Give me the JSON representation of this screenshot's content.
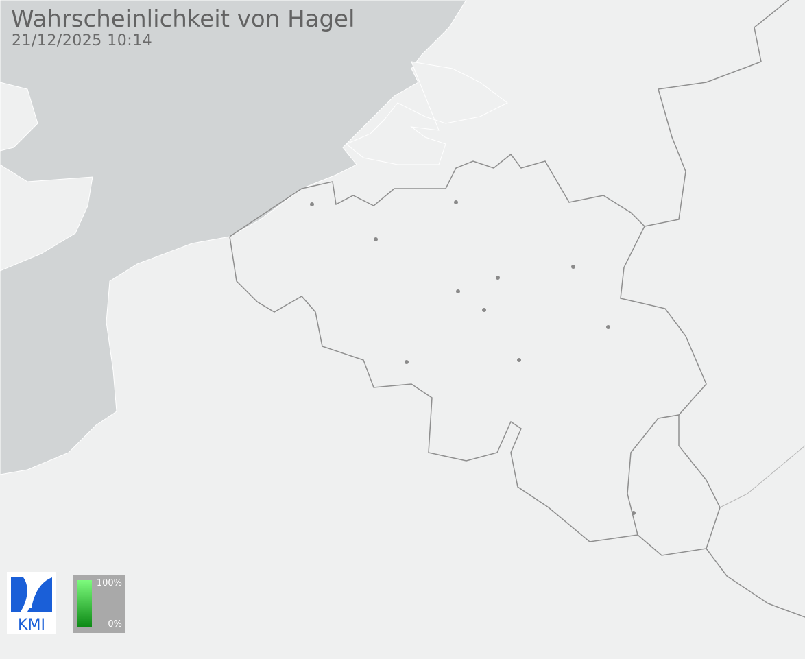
{
  "header": {
    "title": "Wahrscheinlichkeit von Hagel",
    "timestamp": "21/12/2025 10:14"
  },
  "legend": {
    "max_label": "100%",
    "min_label": "0%",
    "color_max": "#7dfb7d",
    "color_min": "#0d8a16"
  },
  "logo": {
    "text": "KMI",
    "color": "#1a5fd8"
  },
  "colors": {
    "sea": "#d1d4d5",
    "land": "#eff0f0",
    "border": "#8f8f8f",
    "city": "#8a8a8a"
  }
}
